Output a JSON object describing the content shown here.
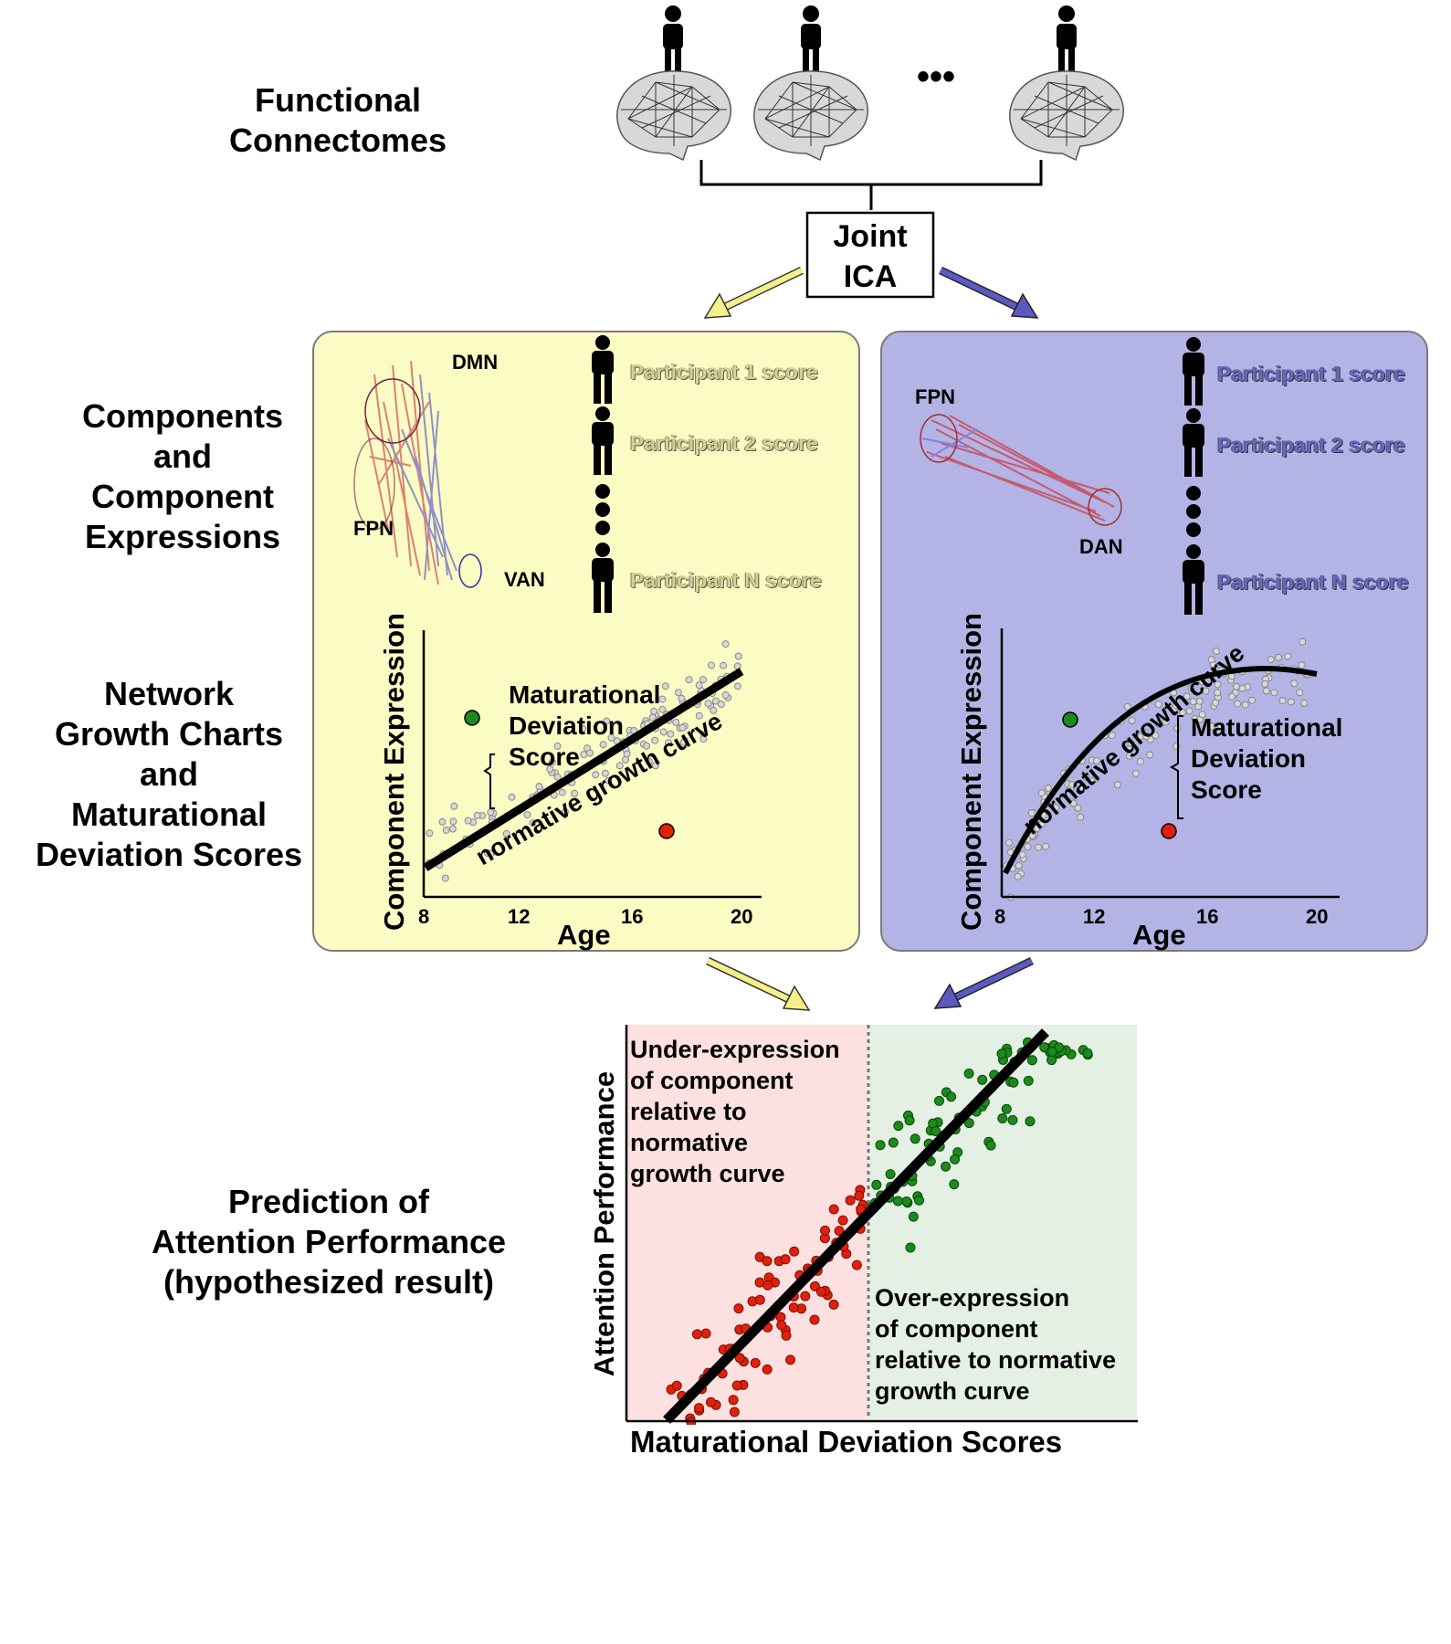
{
  "left_labels": {
    "row1": [
      "Functional",
      "Connectomes"
    ],
    "row2": [
      "Components",
      "and",
      "Component",
      "Expressions"
    ],
    "row3": [
      "Network",
      "Growth Charts",
      "and",
      "Maturational",
      "Deviation Scores"
    ],
    "row4": [
      "Prediction of",
      "Attention Performance",
      "(hypothesized result)"
    ]
  },
  "top": {
    "ellipsis": "•••",
    "ica_label": [
      "Joint",
      "ICA"
    ]
  },
  "yellow_panel": {
    "bg": "#fbfbc4",
    "networks": {
      "dmn": "DMN",
      "fpn": "FPN",
      "van": "VAN"
    },
    "scores": [
      "Participant 1 score",
      "Participant 2 score",
      "Participant N score"
    ],
    "chart": {
      "ylabel": "Component Expression",
      "xlabel": "Age",
      "xticks": [
        "8",
        "12",
        "16",
        "20"
      ],
      "curve_label": "normative growth curve",
      "deviation_label": [
        "Maturational",
        "Deviation",
        "Score"
      ]
    }
  },
  "blue_panel": {
    "bg": "#b3b3e5",
    "networks": {
      "fpn": "FPN",
      "dan": "DAN"
    },
    "scores": [
      "Participant 1 score",
      "Participant 2 score",
      "Participant N score"
    ],
    "chart": {
      "ylabel": "Component Expression",
      "xlabel": "Age",
      "xticks": [
        "8",
        "12",
        "16",
        "20"
      ],
      "curve_label": "normative growth curve",
      "deviation_label": [
        "Maturational",
        "Deviation",
        "Score"
      ]
    }
  },
  "prediction": {
    "ylabel": "Attention Performance",
    "xlabel": "Maturational Deviation Scores",
    "under_text": [
      "Under-expression",
      "of component",
      "relative to",
      "normative",
      "growth curve"
    ],
    "over_text": [
      "Over-expression",
      "of component",
      "relative to normative",
      "growth curve"
    ]
  },
  "colors": {
    "yellow_arrow": "#f5f08a",
    "blue_arrow": "#5a5ac0",
    "under_bg": "#fde0e0",
    "over_bg": "#e4f0e4",
    "red_dot": "#e0200d",
    "green_dot": "#1c8a1c"
  }
}
